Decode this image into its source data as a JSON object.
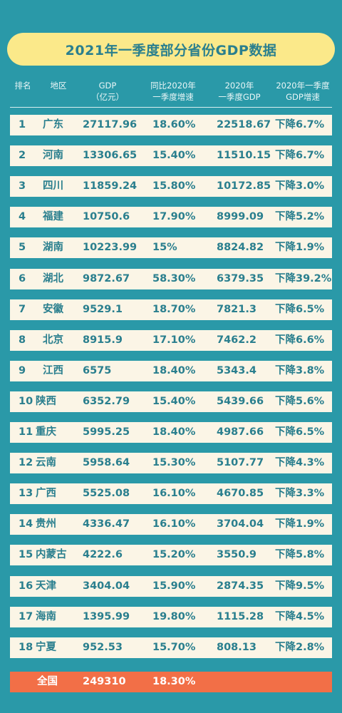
{
  "title": "2021年一季度部分省份GDP数据",
  "headers": {
    "rank": "排名",
    "region": "地区",
    "gdp": "GDP\n（亿元）",
    "yoy": "同比2020年\n一季度增速",
    "gdp2020": "2020年\n一季度GDP",
    "change2020": "2020年一季度\nGDP增速"
  },
  "rows": [
    {
      "rank": "1",
      "region": "广东",
      "gdp": "27117.96",
      "yoy": "18.60%",
      "gdp2020": "22518.67",
      "change2020": "下降6.7%"
    },
    {
      "rank": "2",
      "region": "河南",
      "gdp": "13306.65",
      "yoy": "15.40%",
      "gdp2020": "11510.15",
      "change2020": "下降6.7%"
    },
    {
      "rank": "3",
      "region": "四川",
      "gdp": "11859.24",
      "yoy": "15.80%",
      "gdp2020": "10172.85",
      "change2020": "下降3.0%"
    },
    {
      "rank": "4",
      "region": "福建",
      "gdp": "10750.6",
      "yoy": "17.90%",
      "gdp2020": "8999.09",
      "change2020": "下降5.2%"
    },
    {
      "rank": "5",
      "region": "湖南",
      "gdp": "10223.99",
      "yoy": "15%",
      "gdp2020": "8824.82",
      "change2020": "下降1.9%"
    },
    {
      "rank": "6",
      "region": "湖北",
      "gdp": "9872.67",
      "yoy": "58.30%",
      "gdp2020": "6379.35",
      "change2020": "下降39.2%"
    },
    {
      "rank": "7",
      "region": "安徽",
      "gdp": "9529.1",
      "yoy": "18.70%",
      "gdp2020": "7821.3",
      "change2020": "下降6.5%"
    },
    {
      "rank": "8",
      "region": "北京",
      "gdp": "8915.9",
      "yoy": "17.10%",
      "gdp2020": "7462.2",
      "change2020": "下降6.6%"
    },
    {
      "rank": "9",
      "region": "江西",
      "gdp": "6575",
      "yoy": "18.40%",
      "gdp2020": "5343.4",
      "change2020": "下降3.8%"
    },
    {
      "rank": "10",
      "region": "陕西",
      "gdp": "6352.79",
      "yoy": "15.40%",
      "gdp2020": "5439.66",
      "change2020": "下降5.6%"
    },
    {
      "rank": "11",
      "region": "重庆",
      "gdp": "5995.25",
      "yoy": "18.40%",
      "gdp2020": "4987.66",
      "change2020": "下降6.5%"
    },
    {
      "rank": "12",
      "region": "云南",
      "gdp": "5958.64",
      "yoy": "15.30%",
      "gdp2020": "5107.77",
      "change2020": "下降4.3%"
    },
    {
      "rank": "13",
      "region": "广西",
      "gdp": "5525.08",
      "yoy": "16.10%",
      "gdp2020": "4670.85",
      "change2020": "下降3.3%"
    },
    {
      "rank": "14",
      "region": "贵州",
      "gdp": "4336.47",
      "yoy": "16.10%",
      "gdp2020": "3704.04",
      "change2020": "下降1.9%"
    },
    {
      "rank": "15",
      "region": "内蒙古",
      "gdp": "4222.6",
      "yoy": "15.20%",
      "gdp2020": "3550.9",
      "change2020": "下降5.8%"
    },
    {
      "rank": "16",
      "region": "天津",
      "gdp": "3404.04",
      "yoy": "15.90%",
      "gdp2020": "2874.35",
      "change2020": "下降9.5%"
    },
    {
      "rank": "17",
      "region": "海南",
      "gdp": "1395.99",
      "yoy": "19.80%",
      "gdp2020": "1115.28",
      "change2020": "下降4.5%"
    },
    {
      "rank": "18",
      "region": "宁夏",
      "gdp": "952.53",
      "yoy": "15.70%",
      "gdp2020": "808.13",
      "change2020": "下降2.8%"
    }
  ],
  "total": {
    "region": "全国",
    "gdp": "249310",
    "yoy": "18.30%"
  },
  "colors": {
    "background": "#2a99a8",
    "title_pill": "#fbe98a",
    "row_bg": "#fbf5e6",
    "text": "#2a7f8e",
    "total_bg": "#f26f47"
  }
}
